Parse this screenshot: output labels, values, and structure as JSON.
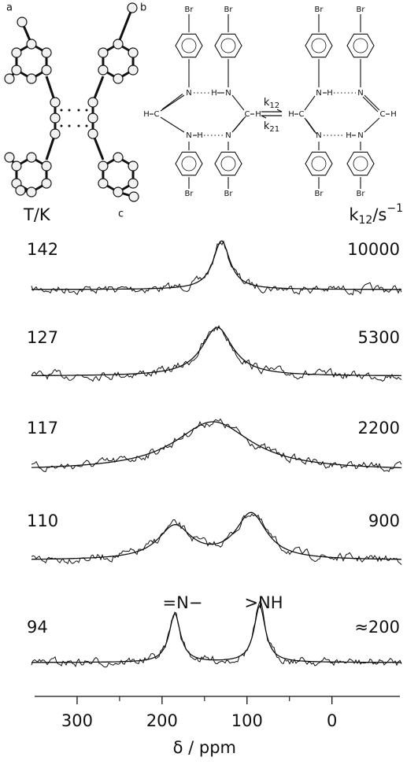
{
  "panel_a": {
    "label": "a"
  },
  "panel_b": {
    "label": "b",
    "left_atoms": [
      "Br",
      "Br",
      "H",
      "C",
      "N",
      "H",
      "N",
      "N",
      "H",
      "N",
      "C",
      "H",
      "Br",
      "Br"
    ],
    "right_atoms": [
      "Br",
      "Br",
      "N",
      "H",
      "N",
      "H",
      "C",
      "C",
      "H",
      "N",
      "H",
      "N",
      "Br",
      "Br"
    ],
    "forward_rate": {
      "symbol": "k",
      "subscript": "12"
    },
    "backward_rate": {
      "symbol": "k",
      "subscript": "21"
    }
  },
  "panel_c": {
    "label": "c",
    "temperature_header": "T/K",
    "rate_header": {
      "symbol": "k",
      "subscript": "12",
      "unit": "/s",
      "exponent": "−1"
    },
    "spectra": [
      {
        "temperature": 142,
        "rate": 10000
      },
      {
        "temperature": 127,
        "rate": 5300
      },
      {
        "temperature": 117,
        "rate": 2200
      },
      {
        "temperature": 110,
        "rate": 900
      },
      {
        "temperature": 94,
        "rate": "≈200"
      }
    ],
    "peak_labels": [
      "=N−",
      ">NH"
    ],
    "axis": {
      "label": "δ / ppm",
      "xlim": [
        350,
        -80
      ],
      "xticks": [
        300,
        200,
        100,
        0
      ]
    }
  }
}
